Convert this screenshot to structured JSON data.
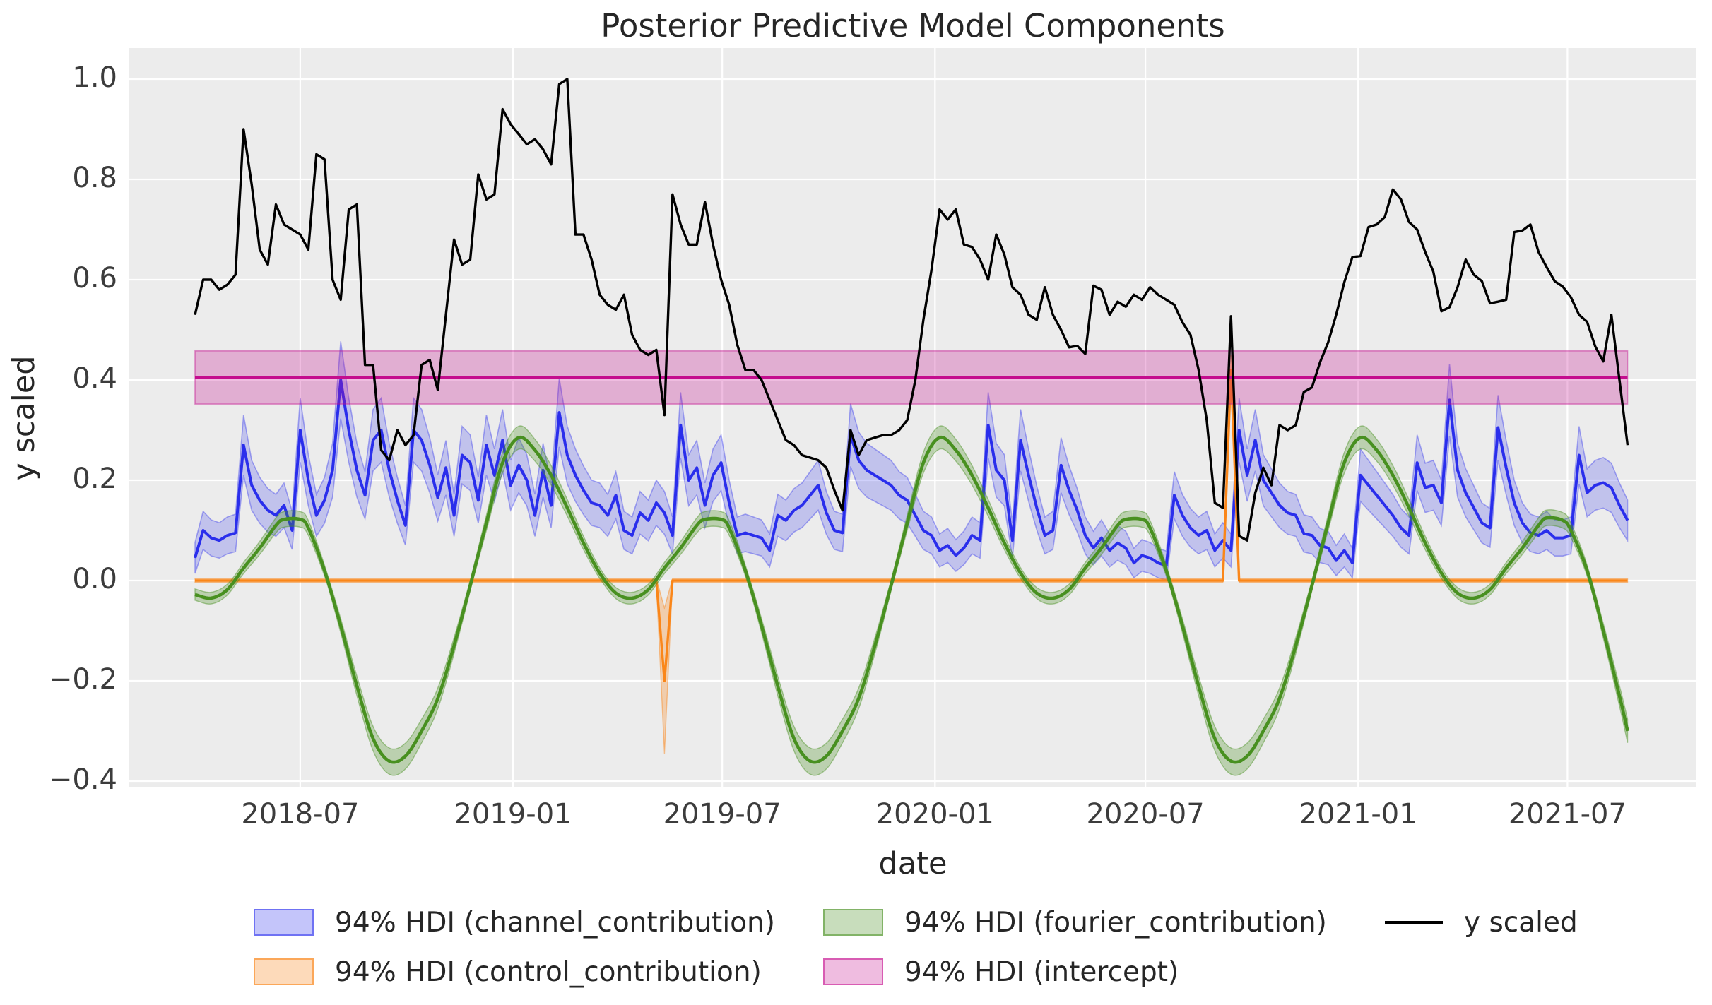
{
  "title": "Posterior Predictive Model Components",
  "axis": {
    "xlabel": "date",
    "ylabel": "y scaled",
    "yticks": [
      "1.0",
      "0.8",
      "0.6",
      "0.4",
      "0.2",
      "0.0",
      "−0.2",
      "−0.4"
    ],
    "ytick_values": [
      1.0,
      0.8,
      0.6,
      0.4,
      0.2,
      0.0,
      -0.2,
      -0.4
    ],
    "xticks": [
      "2018-07",
      "2019-01",
      "2019-07",
      "2020-01",
      "2020-07",
      "2021-01",
      "2021-07"
    ],
    "xtick_week_index": [
      13.0,
      39.29,
      65.14,
      91.43,
      117.43,
      143.71,
      169.57
    ]
  },
  "colors": {
    "figure_bg": "#ffffff",
    "plot_bg": "#ececec",
    "grid": "#ffffff",
    "y_scaled": "#000000",
    "channel": "#2a2eec",
    "control": "#fa8619",
    "fourier": "#489020",
    "intercept": "#c40d8e",
    "text": "#262626"
  },
  "legend": {
    "items": [
      {
        "label": "94% HDI (channel_contribution)",
        "kind": "patch",
        "fill": "rgba(42,46,236,0.28)",
        "edge": "rgba(42,46,236,0.55)"
      },
      {
        "label": "94% HDI (control_contribution)",
        "kind": "patch",
        "fill": "rgba(250,134,25,0.30)",
        "edge": "rgba(250,134,25,0.60)"
      },
      {
        "label": "94% HDI (fourier_contribution)",
        "kind": "patch",
        "fill": "rgba(72,144,32,0.30)",
        "edge": "rgba(72,144,32,0.55)"
      },
      {
        "label": "94% HDI (intercept)",
        "kind": "patch",
        "fill": "rgba(196,13,142,0.28)",
        "edge": "rgba(196,13,142,0.55)"
      },
      {
        "label": "y scaled",
        "kind": "line",
        "color": "#000000"
      }
    ]
  },
  "chart_data": {
    "type": "line",
    "title": "Posterior Predictive Model Components",
    "xlabel": "date",
    "ylabel": "y scaled",
    "x_start": "2018-04-01",
    "x_step_days": 7,
    "n_points": 178,
    "xlim": [
      "2018-01-27",
      "2021-10-30"
    ],
    "ylim": [
      -0.41,
      1.06
    ],
    "grid": true,
    "legend_position": "bottom",
    "series": [
      {
        "name": "y scaled",
        "kind": "line",
        "color": "#000000",
        "values": [
          0.53,
          0.6,
          0.6,
          0.58,
          0.59,
          0.61,
          0.9,
          0.79,
          0.66,
          0.63,
          0.75,
          0.71,
          0.7,
          0.69,
          0.66,
          0.85,
          0.84,
          0.6,
          0.56,
          0.74,
          0.75,
          0.43,
          0.43,
          0.26,
          0.24,
          0.3,
          0.27,
          0.29,
          0.43,
          0.44,
          0.38,
          0.53,
          0.68,
          0.63,
          0.64,
          0.81,
          0.76,
          0.77,
          0.94,
          0.91,
          0.89,
          0.87,
          0.88,
          0.86,
          0.83,
          0.99,
          1.0,
          0.69,
          0.69,
          0.64,
          0.57,
          0.55,
          0.54,
          0.57,
          0.49,
          0.46,
          0.45,
          0.46,
          0.33,
          0.77,
          0.71,
          0.67,
          0.67,
          0.755,
          0.67,
          0.6,
          0.55,
          0.47,
          0.42,
          0.42,
          0.4,
          0.36,
          0.32,
          0.28,
          0.27,
          0.25,
          0.245,
          0.24,
          0.225,
          0.18,
          0.14,
          0.3,
          0.25,
          0.28,
          0.285,
          0.29,
          0.29,
          0.3,
          0.32,
          0.4,
          0.52,
          0.62,
          0.74,
          0.72,
          0.74,
          0.67,
          0.665,
          0.64,
          0.6,
          0.69,
          0.65,
          0.585,
          0.57,
          0.53,
          0.52,
          0.585,
          0.53,
          0.5,
          0.465,
          0.468,
          0.452,
          0.588,
          0.58,
          0.53,
          0.556,
          0.546,
          0.57,
          0.56,
          0.585,
          0.57,
          0.56,
          0.55,
          0.515,
          0.49,
          0.42,
          0.32,
          0.155,
          0.145,
          0.527,
          0.089,
          0.08,
          0.175,
          0.225,
          0.19,
          0.31,
          0.3,
          0.31,
          0.376,
          0.385,
          0.435,
          0.475,
          0.53,
          0.595,
          0.645,
          0.647,
          0.705,
          0.71,
          0.725,
          0.78,
          0.76,
          0.715,
          0.7,
          0.655,
          0.616,
          0.537,
          0.545,
          0.585,
          0.64,
          0.61,
          0.597,
          0.553,
          0.556,
          0.56,
          0.695,
          0.698,
          0.71,
          0.655,
          0.625,
          0.597,
          0.586,
          0.565,
          0.53,
          0.516,
          0.467,
          0.437,
          0.53,
          0.4,
          0.27
        ]
      },
      {
        "name": "94% HDI (channel_contribution)",
        "kind": "line_hdi",
        "color": "#2a2eec",
        "band_fill": "rgba(42,46,236,0.22)",
        "band_edge": "rgba(42,46,236,0.38)",
        "hdi_halfwidth_base": 0.025,
        "hdi_halfwidth_scale": 0.13,
        "values": [
          0.045,
          0.1,
          0.085,
          0.08,
          0.09,
          0.095,
          0.27,
          0.19,
          0.16,
          0.14,
          0.13,
          0.15,
          0.1,
          0.3,
          0.2,
          0.13,
          0.16,
          0.22,
          0.4,
          0.3,
          0.22,
          0.17,
          0.28,
          0.3,
          0.22,
          0.16,
          0.11,
          0.3,
          0.28,
          0.23,
          0.165,
          0.225,
          0.13,
          0.25,
          0.235,
          0.16,
          0.27,
          0.21,
          0.28,
          0.19,
          0.23,
          0.2,
          0.13,
          0.22,
          0.15,
          0.335,
          0.25,
          0.21,
          0.18,
          0.155,
          0.15,
          0.13,
          0.17,
          0.1,
          0.09,
          0.135,
          0.12,
          0.155,
          0.135,
          0.09,
          0.31,
          0.2,
          0.225,
          0.15,
          0.21,
          0.235,
          0.155,
          0.09,
          0.095,
          0.09,
          0.085,
          0.06,
          0.13,
          0.12,
          0.14,
          0.15,
          0.17,
          0.19,
          0.135,
          0.1,
          0.095,
          0.29,
          0.24,
          0.22,
          0.21,
          0.2,
          0.19,
          0.17,
          0.16,
          0.13,
          0.1,
          0.09,
          0.06,
          0.07,
          0.05,
          0.065,
          0.09,
          0.08,
          0.31,
          0.22,
          0.2,
          0.08,
          0.28,
          0.21,
          0.145,
          0.09,
          0.1,
          0.23,
          0.18,
          0.14,
          0.09,
          0.065,
          0.085,
          0.06,
          0.075,
          0.065,
          0.035,
          0.05,
          0.045,
          0.035,
          0.03,
          0.17,
          0.13,
          0.105,
          0.09,
          0.1,
          0.06,
          0.08,
          0.06,
          0.3,
          0.21,
          0.28,
          0.2,
          0.175,
          0.15,
          0.135,
          0.13,
          0.094,
          0.09,
          0.07,
          0.065,
          0.04,
          0.06,
          0.035,
          0.21,
          0.19,
          0.17,
          0.15,
          0.13,
          0.105,
          0.09,
          0.235,
          0.185,
          0.19,
          0.155,
          0.36,
          0.22,
          0.175,
          0.145,
          0.115,
          0.105,
          0.305,
          0.225,
          0.155,
          0.115,
          0.095,
          0.09,
          0.1,
          0.085,
          0.085,
          0.09,
          0.25,
          0.175,
          0.19,
          0.195,
          0.185,
          0.15,
          0.12
        ]
      },
      {
        "name": "94% HDI (control_contribution)",
        "kind": "line_hdi_baseline",
        "color": "#fa8619",
        "band_fill": "rgba(250,134,25,0.30)",
        "band_edge": "rgba(250,134,25,0.45)",
        "baseline": 0.0,
        "baseline_hdi_halfwidth": 0.004,
        "spikes": [
          {
            "index": 58,
            "date": "2019-05-12",
            "value": -0.2,
            "hdi": [
              -0.345,
              -0.055
            ]
          },
          {
            "index": 128,
            "date": "2020-09-13",
            "value": 0.42,
            "hdi": [
              0.385,
              0.45
            ]
          }
        ]
      },
      {
        "name": "94% HDI (fourier_contribution)",
        "kind": "smooth_hdi",
        "color": "#489020",
        "band_fill": "rgba(72,144,32,0.30)",
        "band_edge": "rgba(72,144,32,0.45)",
        "hdi_halfwidth_base": 0.01,
        "hdi_halfwidth_scale": 0.045,
        "knots": [
          [
            0,
            -0.028
          ],
          [
            2,
            -0.035
          ],
          [
            4,
            -0.018
          ],
          [
            6,
            0.025
          ],
          [
            8,
            0.065
          ],
          [
            10,
            0.11
          ],
          [
            11,
            0.122
          ],
          [
            13,
            0.122
          ],
          [
            14,
            0.105
          ],
          [
            16,
            0.02
          ],
          [
            18,
            -0.09
          ],
          [
            20,
            -0.21
          ],
          [
            22,
            -0.315
          ],
          [
            24,
            -0.36
          ],
          [
            26,
            -0.35
          ],
          [
            28,
            -0.3
          ],
          [
            30,
            -0.235
          ],
          [
            32,
            -0.13
          ],
          [
            34,
            -0.01
          ],
          [
            36,
            0.115
          ],
          [
            38,
            0.235
          ],
          [
            40,
            0.285
          ],
          [
            42,
            0.26
          ],
          [
            44,
            0.21
          ],
          [
            46,
            0.145
          ],
          [
            48,
            0.075
          ],
          [
            50,
            0.015
          ],
          [
            52,
            -0.025
          ],
          [
            54,
            -0.035
          ],
          [
            56,
            -0.018
          ],
          [
            58,
            0.025
          ],
          [
            60,
            0.065
          ],
          [
            62,
            0.11
          ],
          [
            63,
            0.122
          ],
          [
            65,
            0.122
          ],
          [
            66,
            0.105
          ],
          [
            68,
            0.02
          ],
          [
            70,
            -0.09
          ],
          [
            72,
            -0.21
          ],
          [
            74,
            -0.315
          ],
          [
            76,
            -0.36
          ],
          [
            78,
            -0.35
          ],
          [
            80,
            -0.3
          ],
          [
            82,
            -0.235
          ],
          [
            84,
            -0.13
          ],
          [
            86,
            -0.01
          ],
          [
            88,
            0.115
          ],
          [
            90,
            0.235
          ],
          [
            92,
            0.285
          ],
          [
            94,
            0.26
          ],
          [
            96,
            0.21
          ],
          [
            98,
            0.145
          ],
          [
            100,
            0.075
          ],
          [
            102,
            0.015
          ],
          [
            104,
            -0.025
          ],
          [
            106,
            -0.035
          ],
          [
            108,
            -0.018
          ],
          [
            110,
            0.025
          ],
          [
            112,
            0.065
          ],
          [
            114,
            0.11
          ],
          [
            115,
            0.122
          ],
          [
            117,
            0.122
          ],
          [
            118,
            0.105
          ],
          [
            120,
            0.02
          ],
          [
            122,
            -0.09
          ],
          [
            124,
            -0.21
          ],
          [
            126,
            -0.315
          ],
          [
            128,
            -0.36
          ],
          [
            130,
            -0.35
          ],
          [
            132,
            -0.3
          ],
          [
            134,
            -0.235
          ],
          [
            136,
            -0.13
          ],
          [
            138,
            -0.01
          ],
          [
            140,
            0.115
          ],
          [
            142,
            0.235
          ],
          [
            144,
            0.285
          ],
          [
            146,
            0.26
          ],
          [
            148,
            0.21
          ],
          [
            150,
            0.145
          ],
          [
            152,
            0.075
          ],
          [
            154,
            0.015
          ],
          [
            156,
            -0.025
          ],
          [
            158,
            -0.035
          ],
          [
            160,
            -0.018
          ],
          [
            162,
            0.025
          ],
          [
            164,
            0.065
          ],
          [
            166,
            0.11
          ],
          [
            167,
            0.125
          ],
          [
            169,
            0.12
          ],
          [
            170,
            0.1
          ],
          [
            172,
            0.02
          ],
          [
            174,
            -0.1
          ],
          [
            176,
            -0.23
          ],
          [
            177,
            -0.3
          ]
        ]
      },
      {
        "name": "94% HDI (intercept)",
        "kind": "const_band",
        "color": "#c40d8e",
        "band_fill": "rgba(196,13,142,0.28)",
        "band_edge": "rgba(196,13,142,0.45)",
        "mean": 0.405,
        "hdi": [
          0.352,
          0.458
        ]
      }
    ]
  }
}
